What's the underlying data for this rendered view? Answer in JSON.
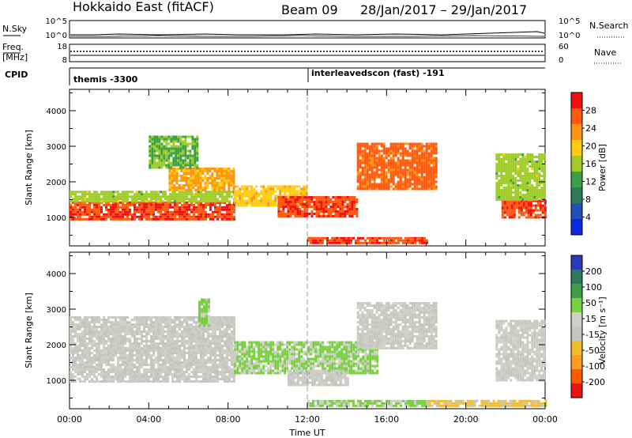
{
  "header": {
    "site": "Hokkaido East (fitACF)",
    "beam": "Beam 09",
    "dates": "28/Jan/2017 – 29/Jan/2017"
  },
  "strips": {
    "nsky_label": "N.Sky",
    "nsky_ticks": [
      "10^5",
      "10^0"
    ],
    "nsearch_label": "N.Search",
    "nsearch_ticks": [
      "10^5",
      "10^0"
    ],
    "freq_label": "Freq.",
    "freq_unit": "[MHz]",
    "freq_ticks": [
      "18",
      "8"
    ],
    "nave_label": "Nave",
    "nave_ticks": [
      "60",
      "0"
    ],
    "cpid_label": "CPID",
    "cpid_segments": [
      "themis -3300",
      "interleavedscon (fast) -191"
    ]
  },
  "x_ticks": [
    "00:00",
    "04:00",
    "08:00",
    "12:00",
    "16:00",
    "20:00",
    "00:00"
  ],
  "x_label": "Time UT",
  "colors": {
    "power_scale": [
      "#0a28e6",
      "#2050b8",
      "#2e7a5a",
      "#3aa048",
      "#a0cc28",
      "#ffcc10",
      "#ff9410",
      "#ff5a10",
      "#f01010"
    ],
    "velocity_scale": [
      "#ee1010",
      "#ff5a00",
      "#ff9a20",
      "#f2be2a",
      "#c6c6c0",
      "#cfcfc8",
      "#78d040",
      "#3aa048",
      "#2e7a5a",
      "#2a3ab8"
    ],
    "ground_scatter": "#c6c6c0"
  },
  "chart_data": [
    {
      "type": "heatmap",
      "name": "power",
      "ylabel": "Slant Range [km]",
      "y_ticks": [
        1000,
        2000,
        3000,
        4000
      ],
      "ylim": [
        200,
        4600
      ],
      "xlim": [
        0,
        24
      ],
      "colorbar": {
        "label": "Power [dB]",
        "ticks": [
          "4",
          "8",
          "12",
          "16",
          "20",
          "24",
          "28"
        ],
        "range": [
          0,
          32
        ]
      },
      "regions": [
        {
          "t0": 0.0,
          "t1": 8.3,
          "r0": 950,
          "r1": 1450,
          "level": 28
        },
        {
          "t0": 0.0,
          "t1": 8.3,
          "r0": 1450,
          "r1": 1750,
          "level": 16
        },
        {
          "t0": 5.0,
          "t1": 8.3,
          "r0": 1750,
          "r1": 2400,
          "level": 22
        },
        {
          "t0": 4.0,
          "t1": 6.5,
          "r0": 2400,
          "r1": 3300,
          "level": 14
        },
        {
          "t0": 8.3,
          "t1": 12.0,
          "r0": 1300,
          "r1": 1900,
          "level": 20
        },
        {
          "t0": 10.5,
          "t1": 14.5,
          "r0": 1000,
          "r1": 1600,
          "level": 28
        },
        {
          "t0": 12.0,
          "t1": 18.0,
          "r0": 300,
          "r1": 450,
          "level": 28
        },
        {
          "t0": 14.5,
          "t1": 18.5,
          "r0": 1800,
          "r1": 3100,
          "level": 26
        },
        {
          "t0": 21.8,
          "t1": 24.0,
          "r0": 1000,
          "r1": 1500,
          "level": 28
        },
        {
          "t0": 21.5,
          "t1": 24.0,
          "r0": 1500,
          "r1": 2800,
          "level": 16
        }
      ]
    },
    {
      "type": "heatmap",
      "name": "velocity",
      "ylabel": "Slant Range [km]",
      "y_ticks": [
        1000,
        2000,
        3000,
        4000
      ],
      "ylim": [
        200,
        4600
      ],
      "xlim": [
        0,
        24
      ],
      "colorbar": {
        "label": "Velocity [m s⁻¹]",
        "ticks": [
          "200",
          "100",
          "50",
          "15",
          "-15",
          "-50",
          "-100",
          "-200"
        ],
        "range": [
          -250,
          250
        ]
      },
      "regions": [
        {
          "t0": 0.0,
          "t1": 8.3,
          "r0": 950,
          "r1": 2800,
          "level": 0
        },
        {
          "t0": 6.5,
          "t1": 7.0,
          "r0": 2500,
          "r1": 3300,
          "level": 60
        },
        {
          "t0": 8.3,
          "t1": 15.5,
          "r0": 1200,
          "r1": 2100,
          "level": 60
        },
        {
          "t0": 11.0,
          "t1": 14.0,
          "r0": 850,
          "r1": 1300,
          "level": 0
        },
        {
          "t0": 12.0,
          "t1": 18.0,
          "r0": 300,
          "r1": 450,
          "level": 60
        },
        {
          "t0": 18.0,
          "t1": 24.0,
          "r0": 300,
          "r1": 450,
          "level": -60
        },
        {
          "t0": 14.5,
          "t1": 18.5,
          "r0": 1900,
          "r1": 3200,
          "level": 0
        },
        {
          "t0": 21.5,
          "t1": 24.0,
          "r0": 1000,
          "r1": 2700,
          "level": 0
        }
      ]
    }
  ]
}
